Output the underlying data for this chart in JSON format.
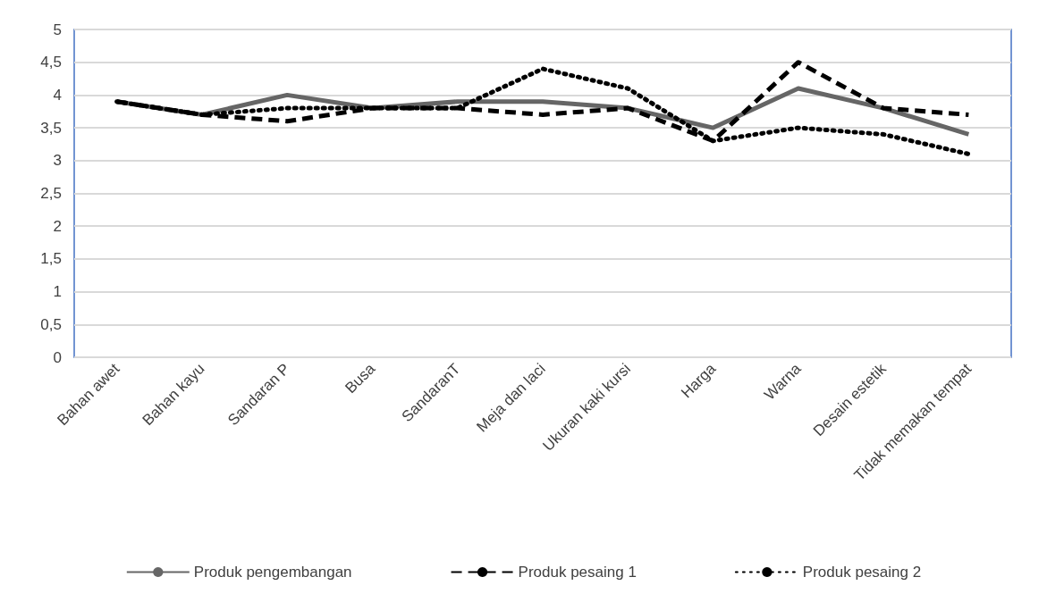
{
  "chart_data": {
    "type": "line",
    "categories": [
      "Bahan awet",
      "Bahan kayu",
      "Sandaran P",
      "Busa",
      "SandaranT",
      "Meja dan laci",
      "Ukuran kaki kursi",
      "Harga",
      "Warna",
      "Desain estetik",
      "Tidak memakan tempat"
    ],
    "series": [
      {
        "name": "Produk pengembangan",
        "color": "#666666",
        "line_style": "solid",
        "values": [
          3.9,
          3.7,
          4.0,
          3.8,
          3.9,
          3.9,
          3.8,
          3.5,
          4.1,
          3.8,
          3.4
        ]
      },
      {
        "name": "Produk pesaing 1",
        "color": "#000000",
        "line_style": "dashed",
        "values": [
          3.9,
          3.7,
          3.6,
          3.8,
          3.8,
          3.7,
          3.8,
          3.3,
          4.5,
          3.8,
          3.7
        ]
      },
      {
        "name": "Produk pesaing 2",
        "color": "#000000",
        "line_style": "dotted",
        "values": [
          3.9,
          3.7,
          3.8,
          3.8,
          3.8,
          4.4,
          4.1,
          3.3,
          3.5,
          3.4,
          3.1
        ]
      }
    ],
    "ylim": [
      0,
      5
    ],
    "yticks": [
      0,
      {
        "value": 0.5,
        "label": "0,5"
      },
      1,
      {
        "value": 1.5,
        "label": "1,5"
      },
      2,
      {
        "value": 2.5,
        "label": "2,5"
      },
      3,
      {
        "value": 3.5,
        "label": "3,5"
      },
      4,
      {
        "value": 4.5,
        "label": "4,5"
      },
      5
    ],
    "grid": "y",
    "legend": "bottom",
    "marker": "none"
  }
}
